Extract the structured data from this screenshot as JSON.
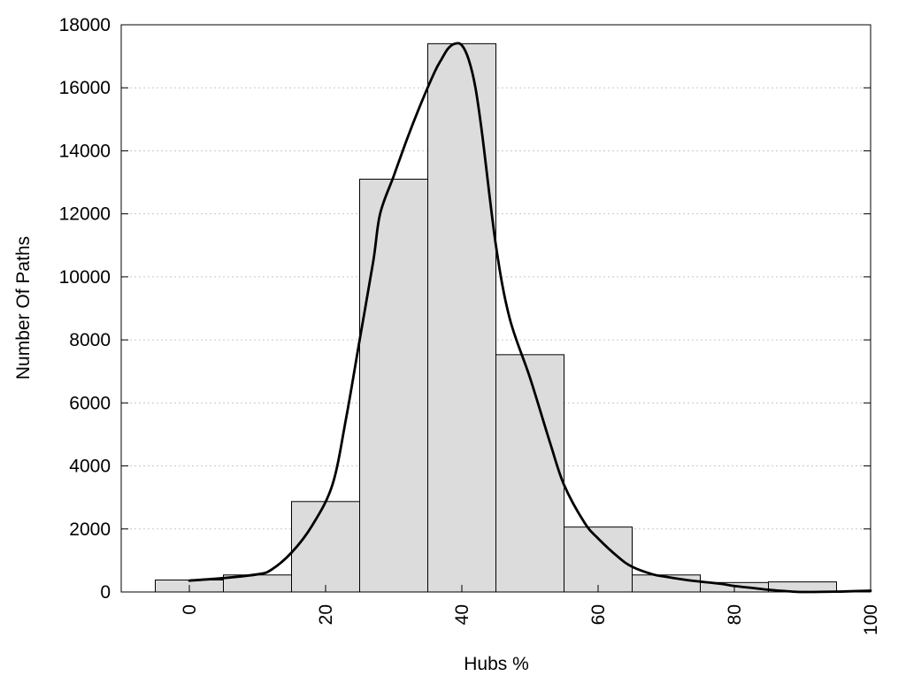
{
  "chart_data": {
    "type": "bar",
    "title": "",
    "xlabel": "Hubs %",
    "ylabel": "Number Of Paths",
    "xlim": [
      -10,
      100
    ],
    "ylim": [
      0,
      18000
    ],
    "x_ticks": [
      0,
      20,
      40,
      60,
      80,
      100
    ],
    "y_ticks": [
      0,
      2000,
      4000,
      6000,
      8000,
      10000,
      12000,
      14000,
      16000,
      18000
    ],
    "grid": "horizontal dotted",
    "bin_width": 10,
    "bars": [
      {
        "x": 0,
        "value": 380
      },
      {
        "x": 10,
        "value": 540
      },
      {
        "x": 20,
        "value": 2870
      },
      {
        "x": 30,
        "value": 13100
      },
      {
        "x": 40,
        "value": 17400
      },
      {
        "x": 50,
        "value": 7530
      },
      {
        "x": 60,
        "value": 2060
      },
      {
        "x": 70,
        "value": 540
      },
      {
        "x": 80,
        "value": 300
      },
      {
        "x": 90,
        "value": 320
      }
    ],
    "curve": {
      "x": [
        0,
        5,
        10,
        12,
        15,
        18,
        21,
        23,
        25,
        27,
        28,
        30,
        32,
        34,
        36,
        37,
        38,
        39,
        40,
        41,
        42,
        43,
        45,
        47,
        50,
        53,
        55,
        58,
        60,
        63,
        65,
        68,
        70,
        73,
        75,
        78,
        80,
        83,
        85,
        88,
        90,
        95,
        100
      ],
      "y": [
        360,
        440,
        560,
        700,
        1250,
        2100,
        3400,
        5500,
        8000,
        10500,
        12000,
        13200,
        14400,
        15500,
        16500,
        16900,
        17250,
        17400,
        17350,
        16900,
        16000,
        14500,
        11000,
        8700,
        6800,
        4700,
        3400,
        2200,
        1700,
        1100,
        800,
        560,
        480,
        380,
        330,
        260,
        190,
        120,
        70,
        20,
        0,
        10,
        40
      ]
    },
    "colors": {
      "bar_fill": "#dcdcdc",
      "bar_stroke": "#000000",
      "curve": "#000000",
      "grid": "#c8c8c8"
    }
  }
}
